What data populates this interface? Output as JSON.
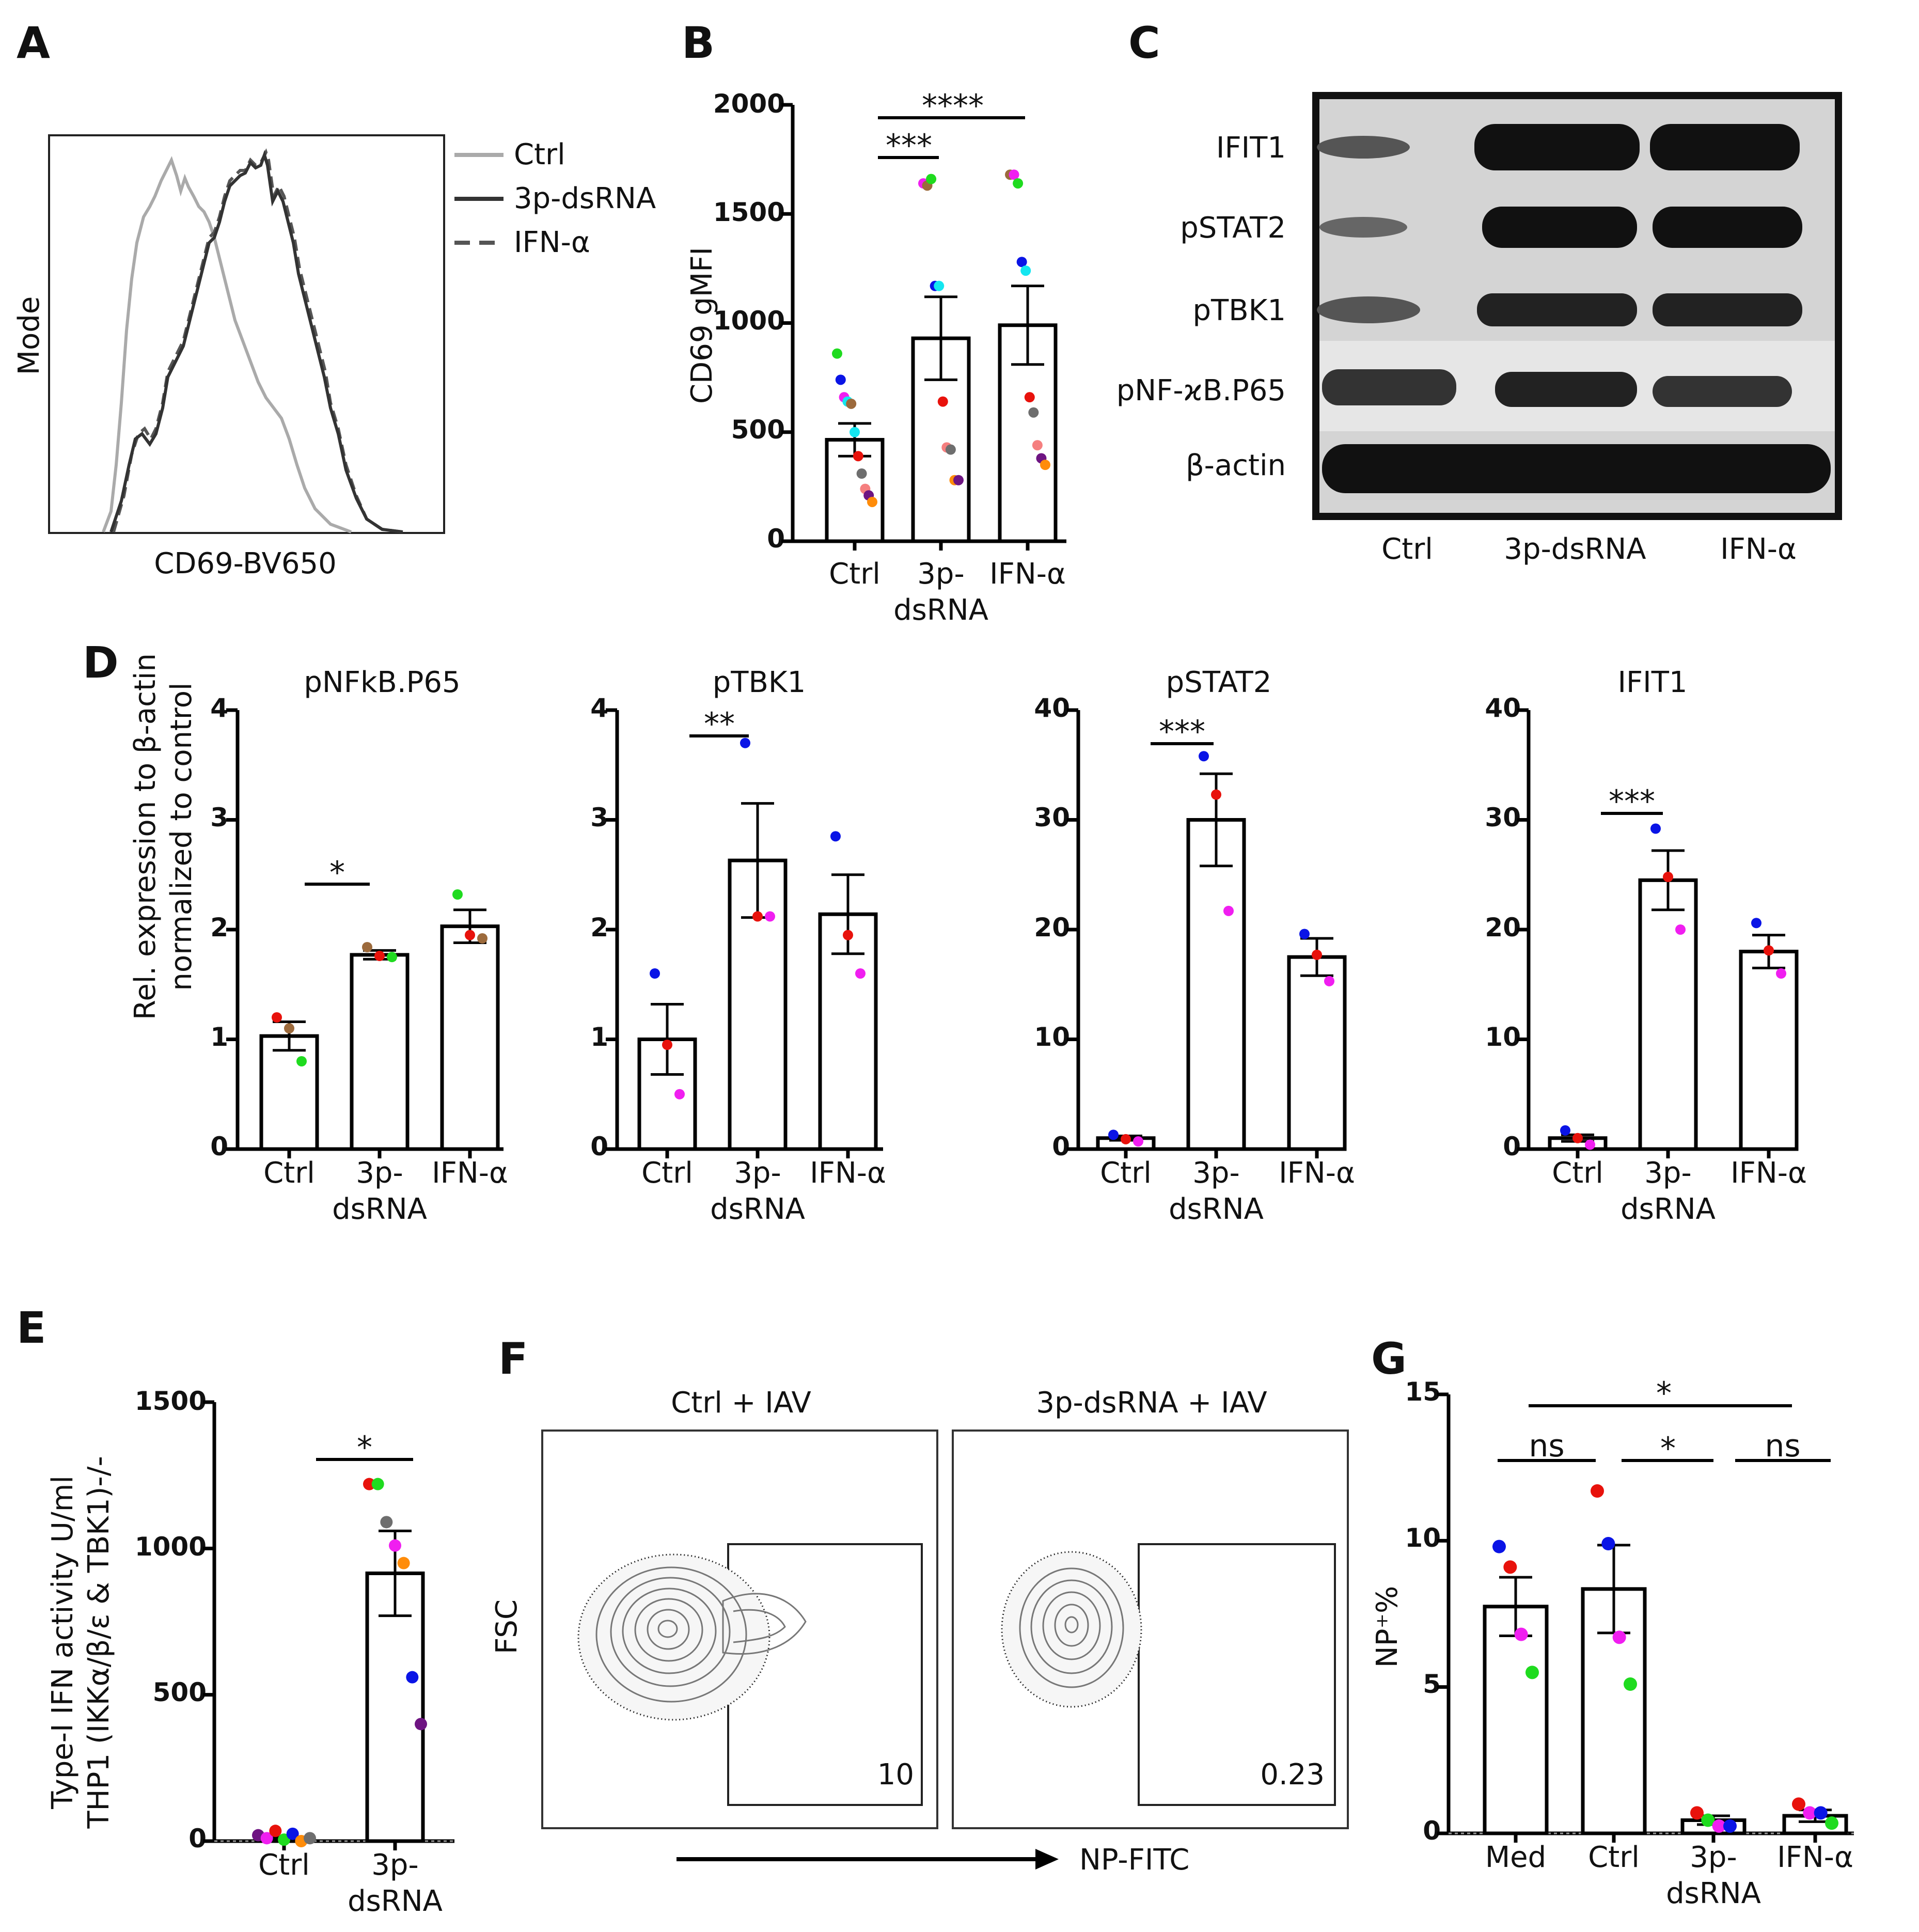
{
  "colors": {
    "red": "#e8120c",
    "green": "#1fdb1f",
    "blue": "#0a14e6",
    "magenta": "#f01ef0",
    "cyan": "#14e6f0",
    "brown": "#9c6a3c",
    "orange": "#ff8c0a",
    "gray": "#6e6e6e",
    "salmon": "#f57f7f",
    "purple": "#6e1482"
  },
  "panels": {
    "A": {
      "letter": "A",
      "legend": [
        "Ctrl",
        "3p-dsRNA",
        "IFN-α"
      ],
      "ylabel": "Mode",
      "xlabel": "CD69-BV650"
    },
    "B": {
      "letter": "B",
      "ylabel": "CD69 gMFI",
      "yticks": [
        "0",
        "500",
        "1000",
        "1500",
        "2000"
      ],
      "cats": [
        "Ctrl",
        "3p-",
        "dsRNA",
        "IFN-α"
      ],
      "sig": [
        "***",
        "****"
      ]
    },
    "C": {
      "letter": "C",
      "rows": [
        "IFIT1",
        "pSTAT2",
        "pTBK1",
        "pNF-ϰB.P65",
        "β-actin"
      ],
      "lanes": [
        "Ctrl",
        "3p-dsRNA",
        "IFN-α"
      ]
    },
    "D": {
      "letter": "D",
      "ylabel1": "Rel. expression to β-actin",
      "ylabel2": "normalized to control",
      "titles": [
        "pNFkB.P65",
        "pTBK1",
        "pSTAT2",
        "IFIT1"
      ],
      "yticks_small": [
        "0",
        "1",
        "2",
        "3",
        "4"
      ],
      "yticks_big": [
        "0",
        "10",
        "20",
        "30",
        "40"
      ],
      "cats": [
        "Ctrl",
        "3p-",
        "dsRNA",
        "IFN-α"
      ],
      "sig": [
        "*",
        "**",
        "***",
        "***"
      ]
    },
    "E": {
      "letter": "E",
      "ylabel1": "Type-I IFN activity U/ml",
      "ylabel2": "THP1 (IKKα/β/ε & TBK1)-/-",
      "yticks": [
        "0",
        "500",
        "1000",
        "1500"
      ],
      "cats": [
        "Ctrl",
        "3p-",
        "dsRNA"
      ],
      "sig": "*"
    },
    "F": {
      "letter": "F",
      "titles": [
        "Ctrl + IAV",
        "3p-dsRNA + IAV"
      ],
      "ylabel": "FSC",
      "xlabel": "NP-FITC",
      "gates": [
        "10",
        "0.23"
      ]
    },
    "G": {
      "letter": "G",
      "ylabel": "NP⁺%",
      "yticks": [
        "0",
        "5",
        "10",
        "15"
      ],
      "cats": [
        "Med",
        "Ctrl",
        "3p-",
        "dsRNA",
        "IFN-α"
      ],
      "sig": [
        "ns",
        "*",
        "ns",
        "*"
      ]
    }
  },
  "chart_data": [
    {
      "panel": "B",
      "type": "bar",
      "categories": [
        "Ctrl",
        "3p-dsRNA",
        "IFN-α"
      ],
      "values": [
        465,
        930,
        990
      ],
      "sem": [
        75,
        190,
        180
      ],
      "ylim": [
        0,
        2000
      ],
      "ylabel": "CD69 gMFI",
      "points": [
        [
          [
            860,
            "green"
          ],
          [
            740,
            "blue"
          ],
          [
            660,
            "magenta"
          ],
          [
            640,
            "cyan"
          ],
          [
            630,
            "brown"
          ],
          [
            500,
            "cyan"
          ],
          [
            390,
            "red"
          ],
          [
            310,
            "gray"
          ],
          [
            240,
            "salmon"
          ],
          [
            210,
            "purple"
          ],
          [
            180,
            "orange"
          ]
        ],
        [
          [
            1640,
            "magenta"
          ],
          [
            1630,
            "brown"
          ],
          [
            1660,
            "green"
          ],
          [
            1170,
            "blue"
          ],
          [
            1170,
            "cyan"
          ],
          [
            640,
            "red"
          ],
          [
            430,
            "salmon"
          ],
          [
            420,
            "gray"
          ],
          [
            280,
            "orange"
          ],
          [
            280,
            "purple"
          ]
        ],
        [
          [
            1680,
            "brown"
          ],
          [
            1680,
            "magenta"
          ],
          [
            1640,
            "green"
          ],
          [
            1280,
            "blue"
          ],
          [
            1240,
            "cyan"
          ],
          [
            660,
            "red"
          ],
          [
            590,
            "gray"
          ],
          [
            440,
            "salmon"
          ],
          [
            380,
            "purple"
          ],
          [
            350,
            "orange"
          ]
        ]
      ]
    },
    {
      "panel": "D1",
      "type": "bar",
      "title": "pNFkB.P65",
      "categories": [
        "Ctrl",
        "3p-dsRNA",
        "IFN-α"
      ],
      "values": [
        1.03,
        1.77,
        2.03
      ],
      "sem": [
        0.13,
        0.04,
        0.15
      ],
      "ylim": [
        0,
        4
      ],
      "points": [
        [
          [
            1.2,
            "red"
          ],
          [
            1.1,
            "brown"
          ],
          [
            0.8,
            "green"
          ]
        ],
        [
          [
            1.84,
            "brown"
          ],
          [
            1.76,
            "red"
          ],
          [
            1.75,
            "green"
          ]
        ],
        [
          [
            2.32,
            "green"
          ],
          [
            1.95,
            "red"
          ],
          [
            1.92,
            "brown"
          ]
        ]
      ]
    },
    {
      "panel": "D2",
      "type": "bar",
      "title": "pTBK1",
      "categories": [
        "Ctrl",
        "3p-dsRNA",
        "IFN-α"
      ],
      "values": [
        1.0,
        2.63,
        2.14
      ],
      "sem": [
        0.32,
        0.52,
        0.36
      ],
      "ylim": [
        0,
        4
      ],
      "points": [
        [
          [
            1.6,
            "blue"
          ],
          [
            0.95,
            "red"
          ],
          [
            0.5,
            "magenta"
          ]
        ],
        [
          [
            3.7,
            "blue"
          ],
          [
            2.12,
            "red"
          ],
          [
            2.12,
            "magenta"
          ]
        ],
        [
          [
            2.85,
            "blue"
          ],
          [
            1.95,
            "red"
          ],
          [
            1.6,
            "magenta"
          ]
        ]
      ]
    },
    {
      "panel": "D3",
      "type": "bar",
      "title": "pSTAT2",
      "categories": [
        "Ctrl",
        "3p-dsRNA",
        "IFN-α"
      ],
      "values": [
        1.0,
        30.0,
        17.5
      ],
      "sem": [
        0.2,
        4.2,
        1.7
      ],
      "ylim": [
        0,
        40
      ],
      "points": [
        [
          [
            1.3,
            "blue"
          ],
          [
            0.9,
            "red"
          ],
          [
            0.7,
            "magenta"
          ]
        ],
        [
          [
            35.8,
            "blue"
          ],
          [
            32.3,
            "red"
          ],
          [
            21.7,
            "magenta"
          ]
        ],
        [
          [
            19.6,
            "blue"
          ],
          [
            17.7,
            "red"
          ],
          [
            15.3,
            "magenta"
          ]
        ]
      ]
    },
    {
      "panel": "D4",
      "type": "bar",
      "title": "IFIT1",
      "categories": [
        "Ctrl",
        "3p-dsRNA",
        "IFN-α"
      ],
      "values": [
        1.0,
        24.5,
        18.0
      ],
      "sem": [
        0.3,
        2.7,
        1.5
      ],
      "ylim": [
        0,
        40
      ],
      "points": [
        [
          [
            1.7,
            "blue"
          ],
          [
            1.0,
            "red"
          ],
          [
            0.4,
            "magenta"
          ]
        ],
        [
          [
            29.2,
            "blue"
          ],
          [
            24.8,
            "red"
          ],
          [
            20.0,
            "magenta"
          ]
        ],
        [
          [
            20.6,
            "blue"
          ],
          [
            18.1,
            "red"
          ],
          [
            16.0,
            "magenta"
          ]
        ]
      ]
    },
    {
      "panel": "E",
      "type": "bar",
      "categories": [
        "Ctrl",
        "3p-dsRNA"
      ],
      "values": [
        10,
        915
      ],
      "sem": [
        5,
        145
      ],
      "ylim": [
        0,
        1500
      ],
      "ylabel": "Type-I IFN activity U/ml",
      "points": [
        [
          [
            20,
            "purple"
          ],
          [
            10,
            "magenta"
          ],
          [
            35,
            "red"
          ],
          [
            5,
            "green"
          ],
          [
            25,
            "blue"
          ],
          [
            0,
            "orange"
          ],
          [
            10,
            "gray"
          ]
        ],
        [
          [
            1220,
            "red"
          ],
          [
            1220,
            "green"
          ],
          [
            1090,
            "gray"
          ],
          [
            1010,
            "magenta"
          ],
          [
            950,
            "orange"
          ],
          [
            560,
            "blue"
          ],
          [
            400,
            "purple"
          ]
        ]
      ]
    },
    {
      "panel": "G",
      "type": "bar",
      "categories": [
        "Med",
        "Ctrl",
        "3p-dsRNA",
        "IFN-α"
      ],
      "values": [
        7.75,
        8.35,
        0.45,
        0.6
      ],
      "sem": [
        1.0,
        1.5,
        0.15,
        0.2
      ],
      "ylim": [
        0,
        15
      ],
      "ylabel": "NP⁺%",
      "points": [
        [
          [
            9.8,
            "blue"
          ],
          [
            9.1,
            "red"
          ],
          [
            6.8,
            "magenta"
          ],
          [
            5.5,
            "green"
          ]
        ],
        [
          [
            11.7,
            "red"
          ],
          [
            9.9,
            "blue"
          ],
          [
            6.7,
            "magenta"
          ],
          [
            5.1,
            "green"
          ]
        ],
        [
          [
            0.7,
            "red"
          ],
          [
            0.45,
            "green"
          ],
          [
            0.25,
            "magenta"
          ],
          [
            0.25,
            "blue"
          ]
        ],
        [
          [
            1.0,
            "red"
          ],
          [
            0.7,
            "magenta"
          ],
          [
            0.7,
            "blue"
          ],
          [
            0.35,
            "green"
          ]
        ]
      ]
    }
  ]
}
